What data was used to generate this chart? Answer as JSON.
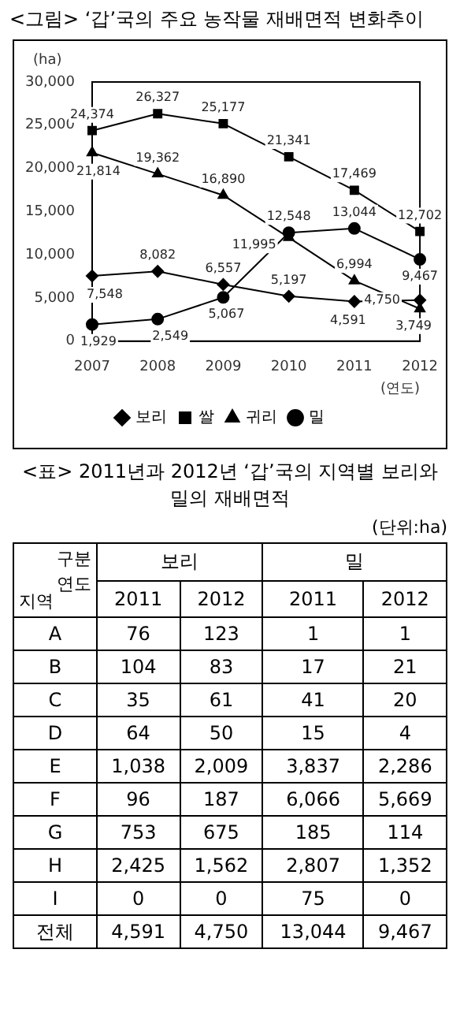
{
  "chart_data": [
    {
      "type": "line",
      "title": "<그림> ‘갑’국의 주요 농작물 재배면적 변화추이",
      "ylabel": "(ha)",
      "xlabel": "(연도)",
      "categories": [
        "2007",
        "2008",
        "2009",
        "2010",
        "2011",
        "2012"
      ],
      "series": [
        {
          "name": "보리",
          "color": "#000000",
          "marker": "diamond",
          "values": [
            7548,
            8082,
            6557,
            5197,
            4591,
            4750
          ],
          "value_labels": [
            "7,548",
            "8,082",
            "6,557",
            "5,197",
            "4,591",
            "4,750"
          ]
        },
        {
          "name": "쌀",
          "color": "#000000",
          "marker": "square",
          "values": [
            24374,
            26327,
            25177,
            21341,
            17469,
            12702
          ],
          "value_labels": [
            "24,374",
            "26,327",
            "25,177",
            "21,341",
            "17,469",
            "12,702"
          ]
        },
        {
          "name": "귀리",
          "color": "#000000",
          "marker": "triangle",
          "values": [
            21814,
            19362,
            16890,
            11995,
            6994,
            3749
          ],
          "value_labels": [
            "21,814",
            "19,362",
            "16,890",
            "11,995",
            "6,994",
            "3,749"
          ]
        },
        {
          "name": "밀",
          "color": "#000000",
          "marker": "circle",
          "values": [
            1929,
            2549,
            5067,
            12548,
            13044,
            9467
          ],
          "value_labels": [
            "1,929",
            "2,549",
            "5,067",
            "12,548",
            "13,044",
            "9,467"
          ]
        }
      ],
      "ylim": [
        0,
        30000
      ],
      "yticks": [
        0,
        {
          "value": 5000,
          "label": "5,000"
        },
        {
          "value": 10000,
          "label": "10,000"
        },
        {
          "value": 15000,
          "label": "15,000"
        },
        {
          "value": 20000,
          "label": "20,000"
        },
        {
          "value": 25000,
          "label": "25,000"
        },
        {
          "value": 30000,
          "label": "30,000"
        }
      ],
      "legend": "bottom",
      "grid": false
    },
    {
      "type": "heatmap",
      "title": "<표> 2011년과 2012년 ‘갑’국의 지역별 보리와 밀의 재배면적",
      "categories": [
        "2011",
        "2012",
        "2011",
        "2012"
      ],
      "y_categories": [
        "A",
        "B",
        "C",
        "D",
        "E",
        "F",
        "G",
        "H",
        "I",
        "전체"
      ],
      "cells": [
        [
          76,
          123,
          1,
          1
        ],
        [
          104,
          83,
          17,
          21
        ],
        [
          35,
          61,
          41,
          20
        ],
        [
          64,
          50,
          15,
          4
        ],
        [
          1038,
          2009,
          3837,
          2286
        ],
        [
          96,
          187,
          6066,
          5669
        ],
        [
          753,
          675,
          185,
          114
        ],
        [
          2425,
          1562,
          2807,
          1352
        ],
        [
          0,
          0,
          75,
          0
        ],
        [
          4591,
          4750,
          13044,
          9467
        ]
      ],
      "cell_labels": [
        [
          "76",
          "123",
          "1",
          "1"
        ],
        [
          "104",
          "83",
          "17",
          "21"
        ],
        [
          "35",
          "61",
          "41",
          "20"
        ],
        [
          "64",
          "50",
          "15",
          "4"
        ],
        [
          "1,038",
          "2,009",
          "3,837",
          "2,286"
        ],
        [
          "96",
          "187",
          "6,066",
          "5,669"
        ],
        [
          "753",
          "675",
          "185",
          "114"
        ],
        [
          "2,425",
          "1,562",
          "2,807",
          "1,352"
        ],
        [
          "0",
          "0",
          "75",
          "0"
        ],
        [
          "4,591",
          "4,750",
          "13,044",
          "9,467"
        ]
      ],
      "annotations": [
        "(단위:ha)",
        "구분",
        "연도",
        "지역",
        "보리",
        "밀"
      ]
    }
  ]
}
